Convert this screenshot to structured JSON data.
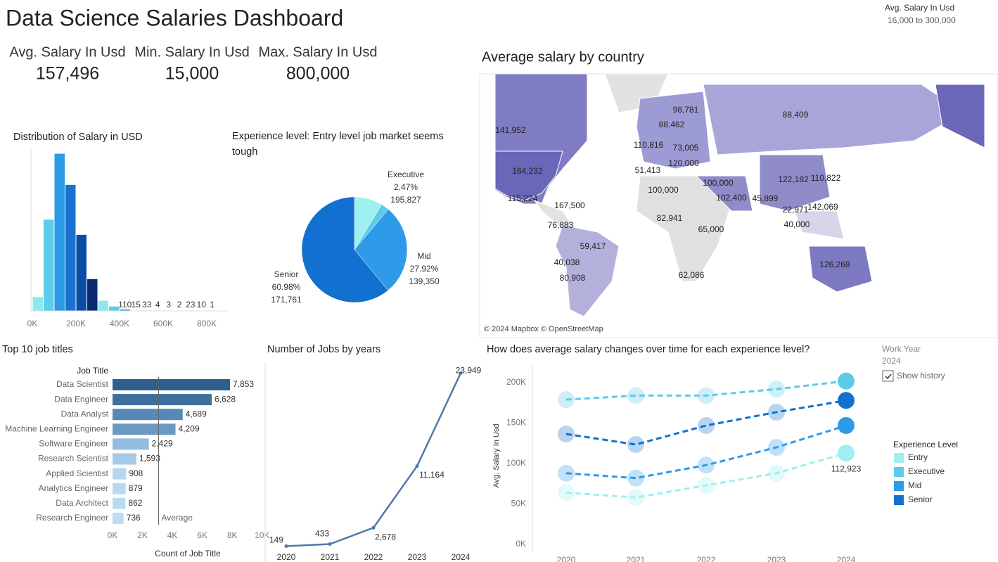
{
  "header": {
    "title": "Data Science Salaries Dashboard"
  },
  "kpis": [
    {
      "label": "Avg. Salary In Usd",
      "value": "157,496"
    },
    {
      "label": "Min. Salary In Usd",
      "value": "15,000"
    },
    {
      "label": "Max. Salary In Usd",
      "value": "800,000"
    }
  ],
  "filters": {
    "work_year": {
      "label": "Work Year",
      "value": "2024",
      "checkbox": "Show history"
    }
  },
  "chart_data": [
    {
      "type": "histogram",
      "title": "Distribution of Salary in USD",
      "bins": [
        0,
        50000,
        100000,
        150000,
        200000,
        250000,
        300000,
        350000,
        400000,
        450000,
        500000,
        550000,
        600000,
        650000,
        700000,
        750000,
        800000,
        850000
      ],
      "values": [
        1030,
        6830,
        11760,
        9430,
        5690,
        2380,
        760,
        330,
        110,
        15,
        33,
        4,
        3,
        2,
        23,
        10,
        1
      ],
      "colors": [
        "#8ee8ee",
        "#5ccdea",
        "#2b9be8",
        "#1a72d0",
        "#0b4ca6",
        "#0a2a70",
        "#8ee8ee",
        "#5ccdea",
        "#2b9be8",
        "#8ee8ee",
        "#8ee8ee",
        "#8ee8ee",
        "#8ee8ee",
        "#8ee8ee",
        "#8ee8ee",
        "#8ee8ee",
        "#8ee8ee"
      ],
      "xlim": [
        0,
        850000
      ],
      "xticks": [
        {
          "value": 0,
          "label": "0K"
        },
        {
          "value": 200000,
          "label": "200K"
        },
        {
          "value": 400000,
          "label": "400K"
        },
        {
          "value": 600000,
          "label": "600K"
        },
        {
          "value": 800000,
          "label": "800K"
        }
      ],
      "ylim": [
        0,
        12000
      ]
    },
    {
      "type": "pie",
      "title": "Experience level: Entry level job market seems tough",
      "categories": [
        null,
        "Executive",
        "Mid",
        "Senior"
      ],
      "values": [
        8.63,
        2.47,
        27.92,
        60.98
      ],
      "value_labels": [
        null,
        "2.47%",
        "27.92%",
        "60.98%"
      ],
      "salaries": [
        null,
        195827,
        139350,
        171761
      ],
      "salary_labels": [
        null,
        "195,827",
        "139,350",
        "171,761"
      ],
      "colors": [
        "#9ef0f0",
        "#5ccbea",
        "#2e9be8",
        "#1170d0"
      ]
    },
    {
      "type": "bar",
      "orientation": "horizontal",
      "title": "Top 10 job titles",
      "category_header": "Job Title",
      "categories": [
        "Data Scientist",
        "Data Engineer",
        "Data Analyst",
        "Machine Learning Engineer",
        "Software Engineer",
        "Research Scientist",
        "Applied Scientist",
        "Analytics Engineer",
        "Data Architect",
        "Research Engineer"
      ],
      "values": [
        7853,
        6628,
        4689,
        4209,
        2429,
        1593,
        908,
        879,
        862,
        736
      ],
      "value_labels": [
        "7,853",
        "6,628",
        "4,689",
        "4,209",
        "2,429",
        "1,593",
        "908",
        "879",
        "862",
        "736"
      ],
      "colors": [
        "#2e5f8f",
        "#3d6f9f",
        "#5689b8",
        "#6a9ac4",
        "#93bde0",
        "#a2cbe8",
        "#b5d8f0",
        "#b7d9f1",
        "#b9dbf2",
        "#bcdcf2"
      ],
      "xlim": [
        0,
        10000
      ],
      "xticks": [
        {
          "value": 0,
          "label": "0K"
        },
        {
          "value": 2000,
          "label": "2K"
        },
        {
          "value": 4000,
          "label": "4K"
        },
        {
          "value": 6000,
          "label": "6K"
        },
        {
          "value": 8000,
          "label": "8K"
        },
        {
          "value": 10000,
          "label": "10K"
        }
      ],
      "x_label": "Count of Job Title",
      "average": 3078.6,
      "average_label": "Average"
    },
    {
      "type": "line",
      "title": "Number of Jobs by years",
      "categories": [
        "2020",
        "2021",
        "2022",
        "2023",
        "2024"
      ],
      "values": [
        149,
        433,
        2678,
        11164,
        23949
      ],
      "value_labels": [
        "149",
        "433",
        "2,678",
        "11,164",
        "23,949"
      ],
      "color": "#4e79a7",
      "ylim": [
        0,
        24000
      ]
    },
    {
      "type": "line",
      "title": "How does average salary changes over time for each experience level?",
      "y_label": "Avg. Salary In Usd",
      "categories": [
        "2020",
        "2021",
        "2022",
        "2023",
        "2024"
      ],
      "ylim": [
        0,
        200000
      ],
      "yticks": [
        {
          "value": 0,
          "label": "0K"
        },
        {
          "value": 50000,
          "label": "50K"
        },
        {
          "value": 100000,
          "label": "100K"
        },
        {
          "value": 150000,
          "label": "150K"
        },
        {
          "value": 200000,
          "label": "200K"
        }
      ],
      "legend_title": "Experience Level",
      "series": [
        {
          "name": "Entry",
          "color": "#9ef0f0",
          "values": [
            64000,
            58000,
            73000,
            88000,
            112923
          ],
          "value_labels": [
            null,
            null,
            null,
            null,
            "112,923"
          ]
        },
        {
          "name": "Executive",
          "color": "#5ccbea",
          "values": [
            179000,
            184000,
            184000,
            192000,
            202000
          ]
        },
        {
          "name": "Mid",
          "color": "#2e9be8",
          "values": [
            88000,
            82000,
            98000,
            120000,
            147000
          ]
        },
        {
          "name": "Senior",
          "color": "#1170d0",
          "values": [
            136500,
            123500,
            147000,
            163500,
            178000
          ]
        }
      ]
    },
    {
      "type": "map",
      "title": "Average salary by country",
      "attribution": "© 2024 Mapbox © OpenStreetMap",
      "color_legend": {
        "title": "Avg. Salary In Usd",
        "range_label": "16,000 to 300,000"
      },
      "values": [
        141952,
        98781,
        88462,
        88409,
        110816,
        73005,
        120000,
        51413,
        164232,
        100000,
        100000,
        122182,
        110822,
        102400,
        45899,
        115224,
        167500,
        22971,
        142069,
        40000,
        82941,
        65000,
        76883,
        59417,
        126268,
        40038,
        80908,
        62086
      ],
      "value_labels": [
        "141,952",
        "98,781",
        "88,462",
        "88,409",
        "110,816",
        "73,005",
        "120,000",
        "51,413",
        "164,232",
        "100,000",
        "100,000",
        "122,182",
        "110,822",
        "102,400",
        "45,899",
        "115,224",
        "167,500",
        "22,971",
        "142,069",
        "40,000",
        "82,941",
        "65,000",
        "76,883",
        "59,417",
        "126,268",
        "40,038",
        "80,908",
        "62,086"
      ]
    }
  ]
}
